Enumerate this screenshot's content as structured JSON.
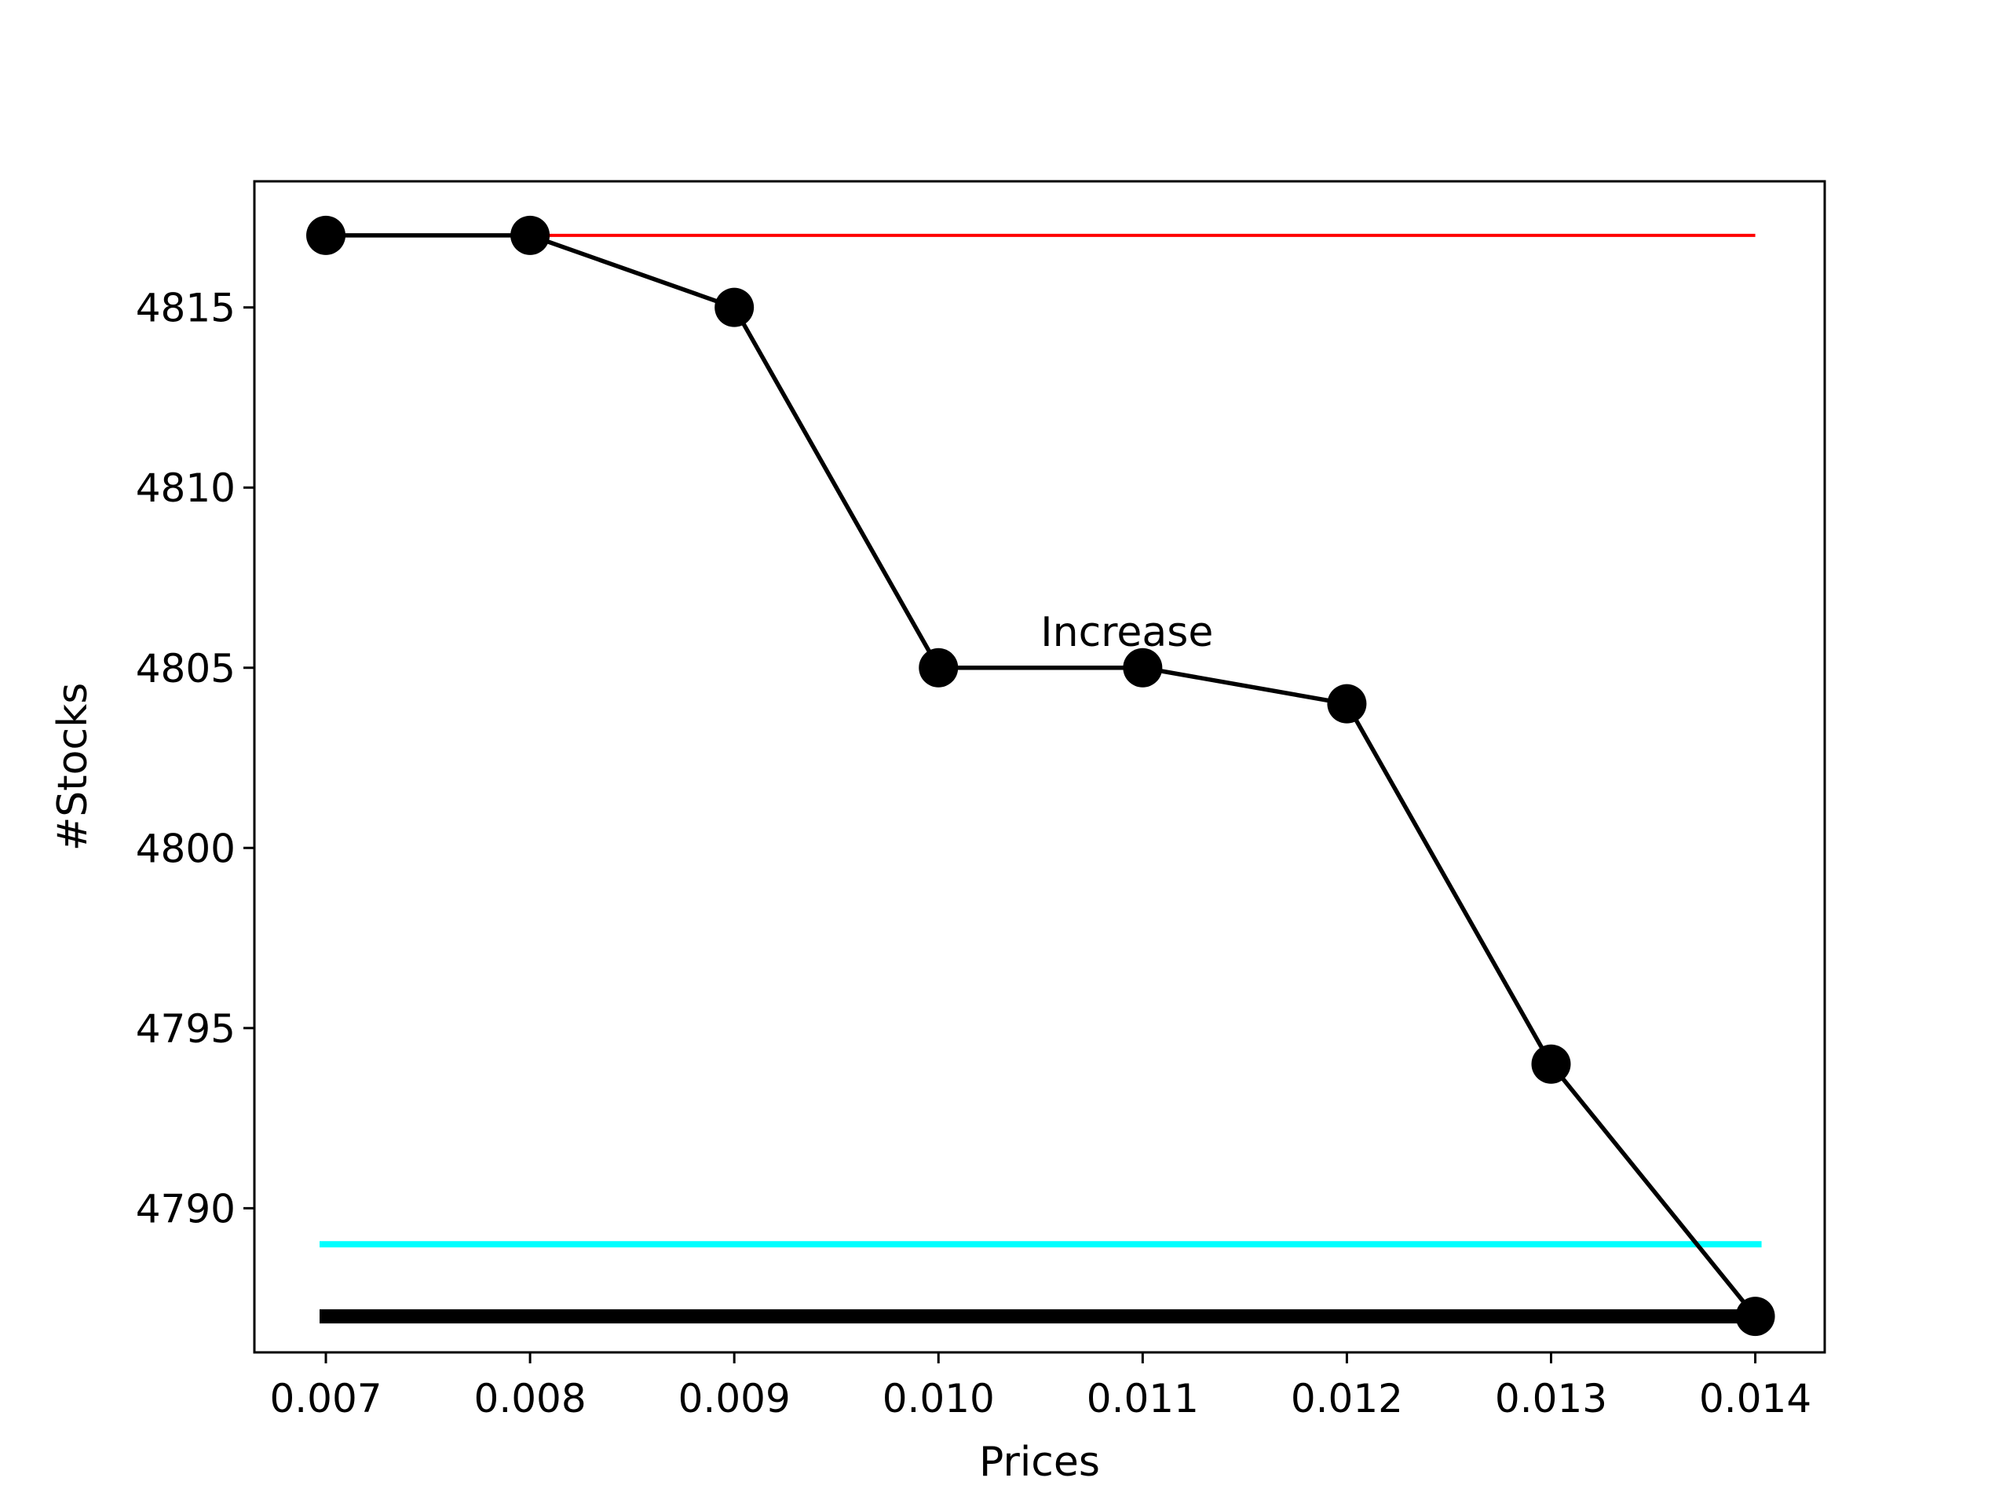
{
  "chart_data": {
    "type": "line",
    "title": "",
    "xlabel": "Prices",
    "ylabel": "#Stocks",
    "xlim": [
      0.00665,
      0.01434
    ],
    "ylim": [
      4786.0,
      4818.5
    ],
    "grid": false,
    "x_ticks": [
      0.007,
      0.008,
      0.009,
      0.01,
      0.011,
      0.012,
      0.013,
      0.014
    ],
    "x_tick_labels": [
      "0.007",
      "0.008",
      "0.009",
      "0.010",
      "0.011",
      "0.012",
      "0.013",
      "0.014"
    ],
    "y_ticks": [
      4790,
      4795,
      4800,
      4805,
      4810,
      4815
    ],
    "y_tick_labels": [
      "4790",
      "4795",
      "4800",
      "4805",
      "4810",
      "4815"
    ],
    "series": [
      {
        "x": [
          0.007,
          0.008,
          0.009,
          0.01,
          0.011,
          0.012,
          0.013,
          0.014
        ],
        "y": [
          4817,
          4817,
          4815,
          4805,
          4805,
          4804,
          4794,
          4787
        ],
        "color": "#000000",
        "marker": "circle"
      }
    ],
    "reference_lines": [
      {
        "y": 4817,
        "x_start": 0.008,
        "x_end": 0.014,
        "color": "#ff0000",
        "weight": "thin"
      },
      {
        "y": 4789,
        "x_start": 0.007,
        "x_end": 0.014,
        "color": "#00ffff",
        "weight": "medium"
      },
      {
        "y": 4787,
        "x_start": 0.007,
        "x_end": 0.014,
        "color": "#000000",
        "weight": "thick"
      }
    ],
    "annotations": [
      {
        "text": "Increase",
        "x": 0.0105,
        "y": 4805.6
      }
    ]
  }
}
